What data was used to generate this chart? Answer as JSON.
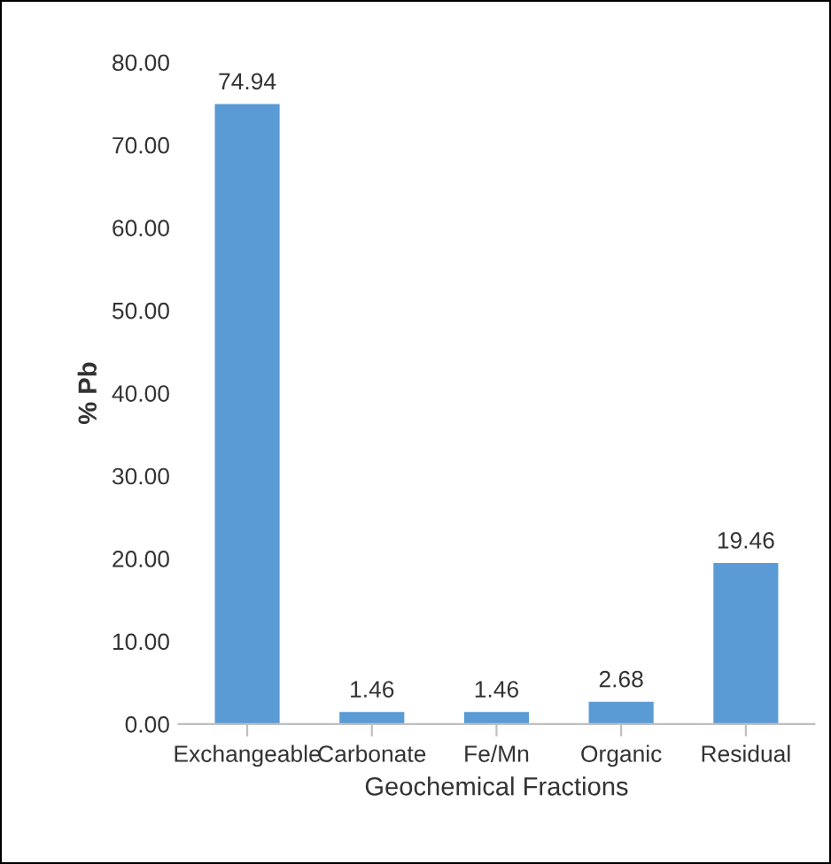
{
  "chart_data": {
    "type": "bar",
    "xlabel": "Geochemical Fractions",
    "ylabel": "% Pb",
    "categories": [
      "Exchangeable",
      "Carbonate",
      "Fe/Mn",
      "Organic",
      "Residual"
    ],
    "values": [
      74.94,
      1.46,
      1.46,
      2.68,
      19.46
    ],
    "color": "#5b9bd5",
    "ylim": [
      0,
      80
    ],
    "yticks": [
      {
        "value": 0,
        "label": "0.00"
      },
      {
        "value": 10,
        "label": "10.00"
      },
      {
        "value": 20,
        "label": "20.00"
      },
      {
        "value": 30,
        "label": "30.00"
      },
      {
        "value": 40,
        "label": "40.00"
      },
      {
        "value": 50,
        "label": "50.00"
      },
      {
        "value": 60,
        "label": "60.00"
      },
      {
        "value": 70,
        "label": "70.00"
      },
      {
        "value": 80,
        "label": "80.00"
      }
    ],
    "grid": false,
    "legend": false,
    "data_labels": true
  }
}
